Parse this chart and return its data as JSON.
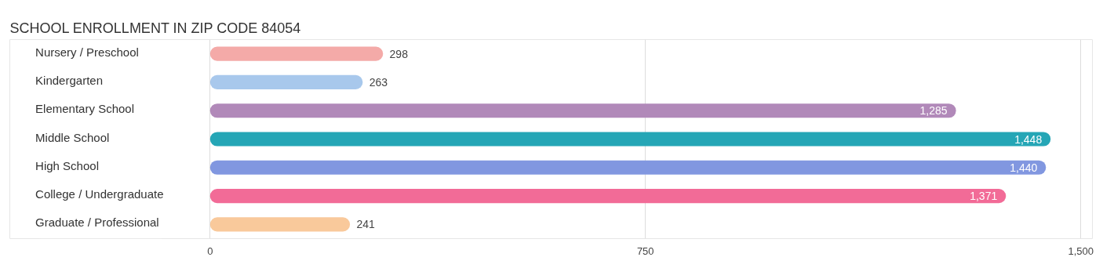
{
  "chart_data": {
    "type": "bar",
    "orientation": "horizontal",
    "title": "SCHOOL ENROLLMENT IN ZIP CODE 84054",
    "categories": [
      "Nursery / Preschool",
      "Kindergarten",
      "Elementary School",
      "Middle School",
      "High School",
      "College / Undergraduate",
      "Graduate / Professional"
    ],
    "values": [
      298,
      263,
      1285,
      1448,
      1440,
      1371,
      241
    ],
    "value_labels": [
      "298",
      "263",
      "1,285",
      "1,448",
      "1,440",
      "1,371",
      "241"
    ],
    "colors": [
      "#f4aaa8",
      "#a8c8ec",
      "#b189b9",
      "#25a6b6",
      "#8197e0",
      "#f26b97",
      "#f9c99b"
    ],
    "xlim": [
      -345,
      1520
    ],
    "xticks": [
      0,
      750,
      {
        "value": 1500,
        "label": "1,500"
      }
    ],
    "grid": "x"
  }
}
